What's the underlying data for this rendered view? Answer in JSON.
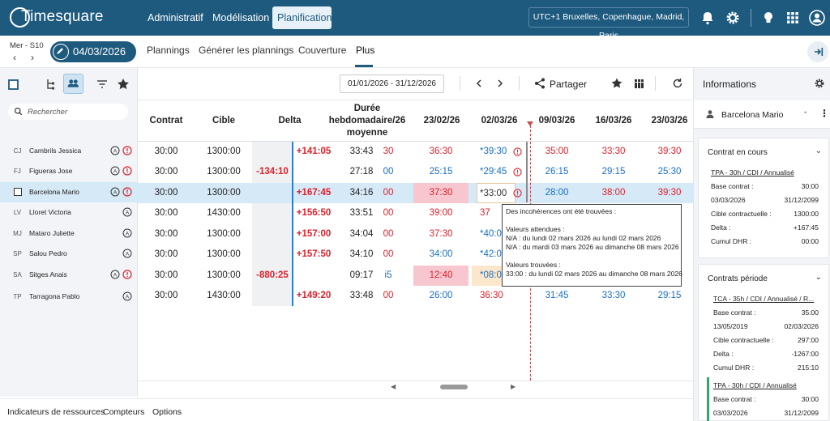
{
  "app": {
    "logo_text": "Timesquare",
    "nav": [
      "Administratif",
      "Modélisation",
      "Planification"
    ],
    "active_nav": "Planification",
    "timezone": "UTC+1 Bruxelles, Copenhague, Madrid, Paris",
    "colors": {
      "header": "#1e5a7e",
      "delta_negative": "#e0202a",
      "value_blue": "#1a6fc4",
      "pink_cell": "#f7c6cf",
      "today_marker": "#c94c4c",
      "green_accent": "#2ea86b"
    }
  },
  "datebar": {
    "week_label": "Mer - S10",
    "current_date": "04/03/2026",
    "tabs": [
      "Plannings",
      "Générer les plannings",
      "Couverture",
      "Plus"
    ],
    "active_tab": "Plus"
  },
  "left": {
    "search_placeholder": "Rechercher",
    "people": [
      {
        "initials": "CJ",
        "name": "Cambrils Jessica",
        "alert": true
      },
      {
        "initials": "FJ",
        "name": "Figueras Jose",
        "alert": true
      },
      {
        "initials": "",
        "name": "Barcelona Mario",
        "alert": true,
        "selected": true
      },
      {
        "initials": "LV",
        "name": "Lloret Victoria",
        "alert": false
      },
      {
        "initials": "MJ",
        "name": "Mataro Juliette",
        "alert": false
      },
      {
        "initials": "SP",
        "name": "Salou Pedro",
        "alert": false
      },
      {
        "initials": "SA",
        "name": "Sitges Anais",
        "alert": true
      },
      {
        "initials": "TP",
        "name": "Tarragona Pablo",
        "alert": false
      }
    ]
  },
  "toolbar": {
    "range": "01/01/2026 - 31/12/2026",
    "share_label": "Partager"
  },
  "grid": {
    "headers": {
      "contrat": "Contrat",
      "cible": "Cible",
      "delta": "Delta",
      "duree": "Durée hebdomadaire/26 moyenne",
      "d1": "23/02/26",
      "d2": "02/03/26",
      "d3": "09/03/26",
      "d4": "16/03/26",
      "d5": "23/03/26"
    },
    "rows": [
      {
        "contrat": "30:00",
        "cible": "1300:00",
        "delta_neg": "",
        "delta_pos": "+141:05",
        "duree": "33:43",
        "clip": "30",
        "d1": "36:30",
        "d1c": "red",
        "d2": "*39:30",
        "d3": "35:00",
        "d4": "33:30",
        "d5": "39:30",
        "d3c": "red",
        "d4c": "red",
        "d5c": "red"
      },
      {
        "contrat": "30:00",
        "cible": "1300:00",
        "delta_neg": "-134:10",
        "delta_pos": "",
        "duree": "27:18",
        "clip": "00",
        "d1": "25:15",
        "d1c": "blue",
        "d2": "*29:45",
        "d3": "26:15",
        "d4": "29:15",
        "d5": "25:30",
        "d3c": "blue",
        "d4c": "blue",
        "d5c": "blue"
      },
      {
        "contrat": "30:00",
        "cible": "1300:00",
        "delta_neg": "",
        "delta_pos": "+167:45",
        "duree": "34:16",
        "clip": "00",
        "d1": "37:30",
        "d1c": "red",
        "d2": "*33:00",
        "d3": "28:00",
        "d4": "38:00",
        "d5": "39:30",
        "d3c": "blue",
        "d4c": "red",
        "d5c": "red"
      },
      {
        "contrat": "30:00",
        "cible": "1430:00",
        "delta_neg": "",
        "delta_pos": "+156:50",
        "duree": "33:51",
        "clip": "00",
        "d1": "39:00",
        "d1c": "red",
        "d2": "37",
        "d3": "",
        "d4": "",
        "d5": ""
      },
      {
        "contrat": "30:00",
        "cible": "1300:00",
        "delta_neg": "",
        "delta_pos": "+157:00",
        "duree": "34:04",
        "clip": "00",
        "d1": "37:30",
        "d1c": "red",
        "d2": "*40:0",
        "d3": "",
        "d4": "",
        "d5": ""
      },
      {
        "contrat": "30:00",
        "cible": "1300:00",
        "delta_neg": "",
        "delta_pos": "+157:50",
        "duree": "34:10",
        "clip": "00",
        "d1": "34:00",
        "d1c": "blue",
        "d2": "*42:0",
        "d3": "",
        "d4": "",
        "d5": ""
      },
      {
        "contrat": "30:00",
        "cible": "1300:00",
        "delta_neg": "-880:25",
        "delta_pos": "",
        "duree": "09:17",
        "clip": "i5",
        "d1": "12:40",
        "d1c": "red",
        "d2": "*08:0",
        "d3": "",
        "d4": "",
        "d5": ""
      },
      {
        "contrat": "30:00",
        "cible": "1430:00",
        "delta_neg": "",
        "delta_pos": "+149:20",
        "duree": "33:48",
        "clip": "00",
        "d1": "26:00",
        "d1c": "blue",
        "d2": "36:30",
        "d3": "31:45",
        "d4": "33:30",
        "d5": "29:15",
        "d3c": "blue",
        "d4c": "blue",
        "d5c": "blue"
      }
    ]
  },
  "tooltip": {
    "lines": [
      "Des incohérences ont été trouvées :",
      "Valeurs attendues :",
      "N/A : du lundi 02 mars 2026 au lundi 02 mars 2026",
      "N/A : du mardi 03 mars 2026 au dimanche 08 mars 2026",
      "Valeurs trouvées :",
      "33:00 : du lundi 02 mars 2026 au dimanche 08 mars 2026"
    ]
  },
  "bottom_tabs": [
    "Indicateurs de ressources",
    "Compteurs",
    "Options"
  ],
  "info": {
    "title": "Informations",
    "person": "Barcelona Mario",
    "current": {
      "title": "Contrat en cours",
      "contract": "TPA - 30h / CDI / Annualisé",
      "base_label": "Base contrat :",
      "base": "30:00",
      "start": "03/03/2026",
      "end": "31/12/2099",
      "cible_label": "Cible contractuelle :",
      "cible": "1300:00",
      "delta_label": "Delta :",
      "delta": "+167:45",
      "dhr_label": "Cumul DHR :",
      "dhr": "00:00"
    },
    "period": {
      "title": "Contrats période",
      "c1": "TCA - 35h / CDI / Annualisé / R...",
      "c1_base": "35:00",
      "c1_start": "13/05/2019",
      "c1_end": "02/03/2026",
      "c1_cible": "297:00",
      "c1_delta": "-1267:00",
      "c1_dhr": "215:10",
      "c2": "TPA - 30h / CDI / Annualisé",
      "c2_base": "30:00",
      "c2_start": "03/03/2026",
      "c2_end": "31/12/2099"
    }
  }
}
